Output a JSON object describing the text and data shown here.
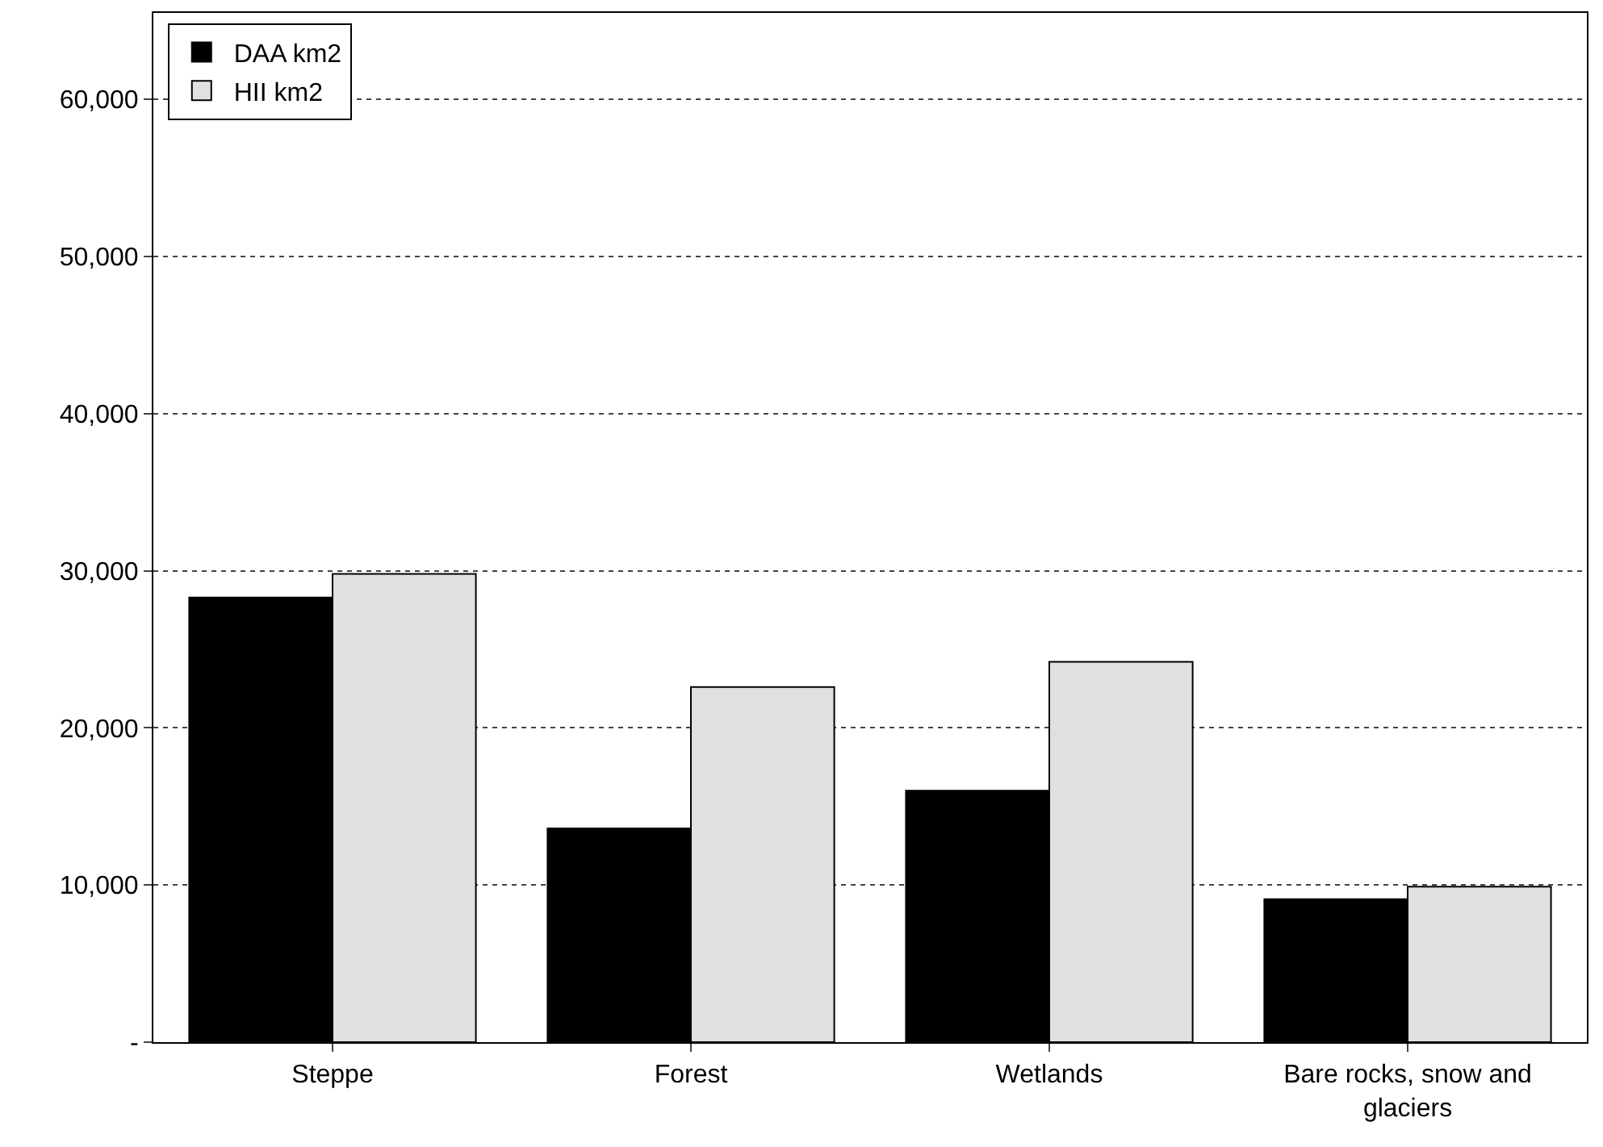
{
  "chart_data": {
    "type": "bar",
    "categories": [
      "Steppe",
      "Forest",
      "Wetlands",
      "Bare rocks, snow and glaciers"
    ],
    "series": [
      {
        "name": "DAA km2",
        "color": "#000000",
        "values": [
          28300,
          13600,
          16000,
          9100
        ]
      },
      {
        "name": "HII km2",
        "color": "#e0e0e0",
        "values": [
          29800,
          22600,
          24200,
          9900
        ]
      }
    ],
    "ylim": [
      0,
      65500
    ],
    "yticks": [
      {
        "value": 0,
        "label": "-"
      },
      {
        "value": 10000,
        "label": "10,000"
      },
      {
        "value": 20000,
        "label": "20,000"
      },
      {
        "value": 30000,
        "label": "30,000"
      },
      {
        "value": 40000,
        "label": "40,000"
      },
      {
        "value": 50000,
        "label": "50,000"
      },
      {
        "value": 60000,
        "label": "60,000"
      }
    ],
    "grid": "y",
    "legend": "top left"
  }
}
